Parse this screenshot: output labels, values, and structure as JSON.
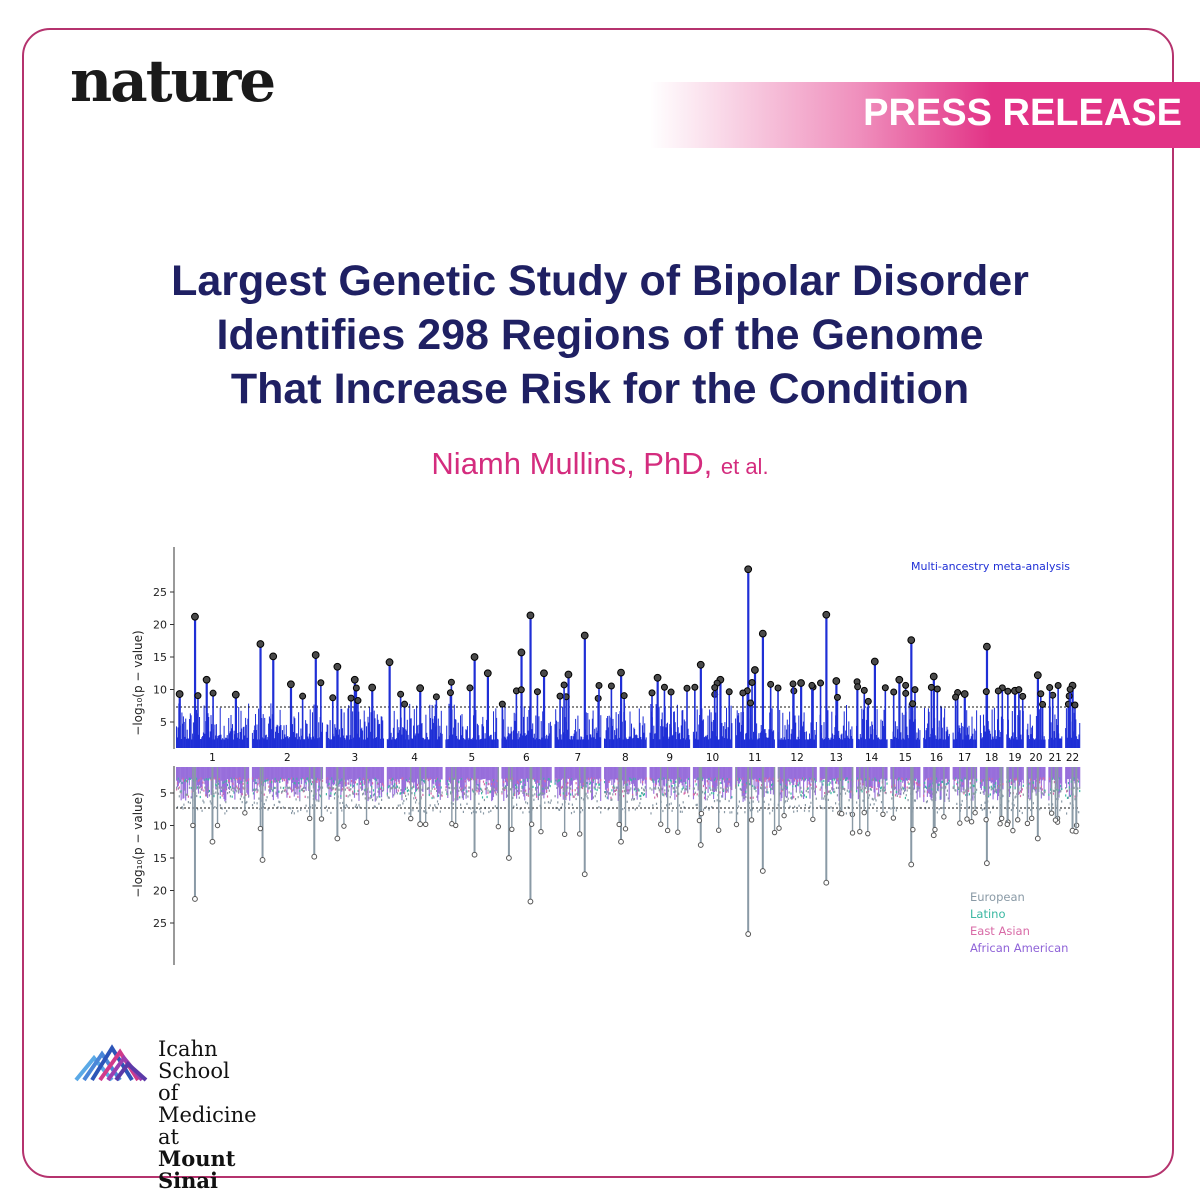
{
  "publisher": "nature",
  "badge": "PRESS RELEASE",
  "headline_lines": [
    "Largest Genetic Study of Bipolar Disorder",
    "Identifies 298 Regions of the Genome",
    "That Increase Risk for the Condition"
  ],
  "authors": {
    "name": "Niamh Mullins, PhD,",
    "suffix": "et al."
  },
  "institution": {
    "line1": "Icahn School",
    "line2": "of Medicine at",
    "line3": "Mount",
    "line4": "Sinai"
  },
  "colors": {
    "frame": "#b5336e",
    "accent": "#e23386",
    "headline": "#1f2063",
    "top_plot": "#1f2fd6"
  },
  "chart_data": {
    "type": "scatter",
    "subtype": "miami-plot",
    "top_panel": {
      "annotation": "Multi-ancestry meta-analysis",
      "ylabel": "−log₁₀(p − value)",
      "yticks": [
        5,
        10,
        15,
        20,
        25
      ],
      "ylim": [
        1,
        29
      ],
      "significance_threshold": 7.3,
      "peaks": [
        {
          "chr": 1,
          "pos": 0.26,
          "y": 21.2
        },
        {
          "chr": 1,
          "pos": 0.05,
          "y": 9.3
        },
        {
          "chr": 1,
          "pos": 0.42,
          "y": 11.5
        },
        {
          "chr": 1,
          "pos": 0.82,
          "y": 9.2
        },
        {
          "chr": 2,
          "pos": 0.12,
          "y": 17.0
        },
        {
          "chr": 2,
          "pos": 0.3,
          "y": 15.1
        },
        {
          "chr": 2,
          "pos": 0.55,
          "y": 10.8
        },
        {
          "chr": 2,
          "pos": 0.9,
          "y": 15.3
        },
        {
          "chr": 3,
          "pos": 0.2,
          "y": 13.5
        },
        {
          "chr": 3,
          "pos": 0.5,
          "y": 11.5
        },
        {
          "chr": 3,
          "pos": 0.8,
          "y": 10.3
        },
        {
          "chr": 4,
          "pos": 0.05,
          "y": 14.2
        },
        {
          "chr": 4,
          "pos": 0.6,
          "y": 10.2
        },
        {
          "chr": 5,
          "pos": 0.55,
          "y": 15.0
        },
        {
          "chr": 5,
          "pos": 0.8,
          "y": 12.5
        },
        {
          "chr": 6,
          "pos": 0.58,
          "y": 21.4
        },
        {
          "chr": 6,
          "pos": 0.4,
          "y": 15.7
        },
        {
          "chr": 6,
          "pos": 0.85,
          "y": 12.5
        },
        {
          "chr": 7,
          "pos": 0.65,
          "y": 18.3
        },
        {
          "chr": 7,
          "pos": 0.3,
          "y": 12.3
        },
        {
          "chr": 8,
          "pos": 0.4,
          "y": 12.6
        },
        {
          "chr": 9,
          "pos": 0.2,
          "y": 11.8
        },
        {
          "chr": 10,
          "pos": 0.2,
          "y": 13.8
        },
        {
          "chr": 10,
          "pos": 0.7,
          "y": 11.5
        },
        {
          "chr": 11,
          "pos": 0.33,
          "y": 28.5
        },
        {
          "chr": 11,
          "pos": 0.7,
          "y": 18.6
        },
        {
          "chr": 11,
          "pos": 0.5,
          "y": 13.0
        },
        {
          "chr": 12,
          "pos": 0.6,
          "y": 11.0
        },
        {
          "chr": 13,
          "pos": 0.2,
          "y": 21.5
        },
        {
          "chr": 13,
          "pos": 0.5,
          "y": 11.3
        },
        {
          "chr": 14,
          "pos": 0.6,
          "y": 14.3
        },
        {
          "chr": 15,
          "pos": 0.7,
          "y": 17.6
        },
        {
          "chr": 15,
          "pos": 0.3,
          "y": 11.5
        },
        {
          "chr": 16,
          "pos": 0.4,
          "y": 12.0
        },
        {
          "chr": 17,
          "pos": 0.5,
          "y": 9.3
        },
        {
          "chr": 18,
          "pos": 0.3,
          "y": 16.6
        },
        {
          "chr": 19,
          "pos": 0.5,
          "y": 9.8
        },
        {
          "chr": 20,
          "pos": 0.6,
          "y": 12.2
        },
        {
          "chr": 22,
          "pos": 0.5,
          "y": 10.6
        }
      ]
    },
    "bottom_panel": {
      "ylabel": "−log₁₀(p − value)",
      "yticks": [
        5,
        10,
        15,
        20,
        25
      ],
      "ylim": [
        1,
        29
      ],
      "significance_threshold": 7.3,
      "legend_position": "lower-right",
      "series": [
        {
          "name": "European",
          "color": "#8a9aa6"
        },
        {
          "name": "Latino",
          "color": "#3bb8a2"
        },
        {
          "name": "East Asian",
          "color": "#d86aa6"
        },
        {
          "name": "African American",
          "color": "#8f63d8"
        }
      ],
      "peaks": [
        {
          "chr": 1,
          "pos": 0.26,
          "y": 21.3
        },
        {
          "chr": 1,
          "pos": 0.5,
          "y": 12.5
        },
        {
          "chr": 2,
          "pos": 0.15,
          "y": 15.3
        },
        {
          "chr": 2,
          "pos": 0.88,
          "y": 14.8
        },
        {
          "chr": 3,
          "pos": 0.2,
          "y": 12.0
        },
        {
          "chr": 4,
          "pos": 0.6,
          "y": 9.8
        },
        {
          "chr": 5,
          "pos": 0.55,
          "y": 14.5
        },
        {
          "chr": 6,
          "pos": 0.58,
          "y": 21.7
        },
        {
          "chr": 6,
          "pos": 0.15,
          "y": 15.0
        },
        {
          "chr": 7,
          "pos": 0.65,
          "y": 17.5
        },
        {
          "chr": 8,
          "pos": 0.4,
          "y": 12.5
        },
        {
          "chr": 10,
          "pos": 0.2,
          "y": 13.0
        },
        {
          "chr": 11,
          "pos": 0.33,
          "y": 26.7
        },
        {
          "chr": 11,
          "pos": 0.7,
          "y": 17.0
        },
        {
          "chr": 13,
          "pos": 0.2,
          "y": 18.8
        },
        {
          "chr": 15,
          "pos": 0.7,
          "y": 16.0
        },
        {
          "chr": 16,
          "pos": 0.4,
          "y": 11.5
        },
        {
          "chr": 18,
          "pos": 0.3,
          "y": 15.8
        },
        {
          "chr": 20,
          "pos": 0.6,
          "y": 12.0
        },
        {
          "chr": 22,
          "pos": 0.5,
          "y": 10.8
        }
      ]
    },
    "chromosomes": [
      {
        "label": "1",
        "size": 249
      },
      {
        "label": "2",
        "size": 242
      },
      {
        "label": "3",
        "size": 198
      },
      {
        "label": "4",
        "size": 190
      },
      {
        "label": "5",
        "size": 181
      },
      {
        "label": "6",
        "size": 171
      },
      {
        "label": "7",
        "size": 159
      },
      {
        "label": "8",
        "size": 145
      },
      {
        "label": "9",
        "size": 138
      },
      {
        "label": "10",
        "size": 134
      },
      {
        "label": "11",
        "size": 135
      },
      {
        "label": "12",
        "size": 133
      },
      {
        "label": "13",
        "size": 114
      },
      {
        "label": "14",
        "size": 107
      },
      {
        "label": "15",
        "size": 102
      },
      {
        "label": "16",
        "size": 90
      },
      {
        "label": "17",
        "size": 83
      },
      {
        "label": "18",
        "size": 80
      },
      {
        "label": "19",
        "size": 59
      },
      {
        "label": "20",
        "size": 64
      },
      {
        "label": "21",
        "size": 47
      },
      {
        "label": "22",
        "size": 51
      }
    ]
  }
}
